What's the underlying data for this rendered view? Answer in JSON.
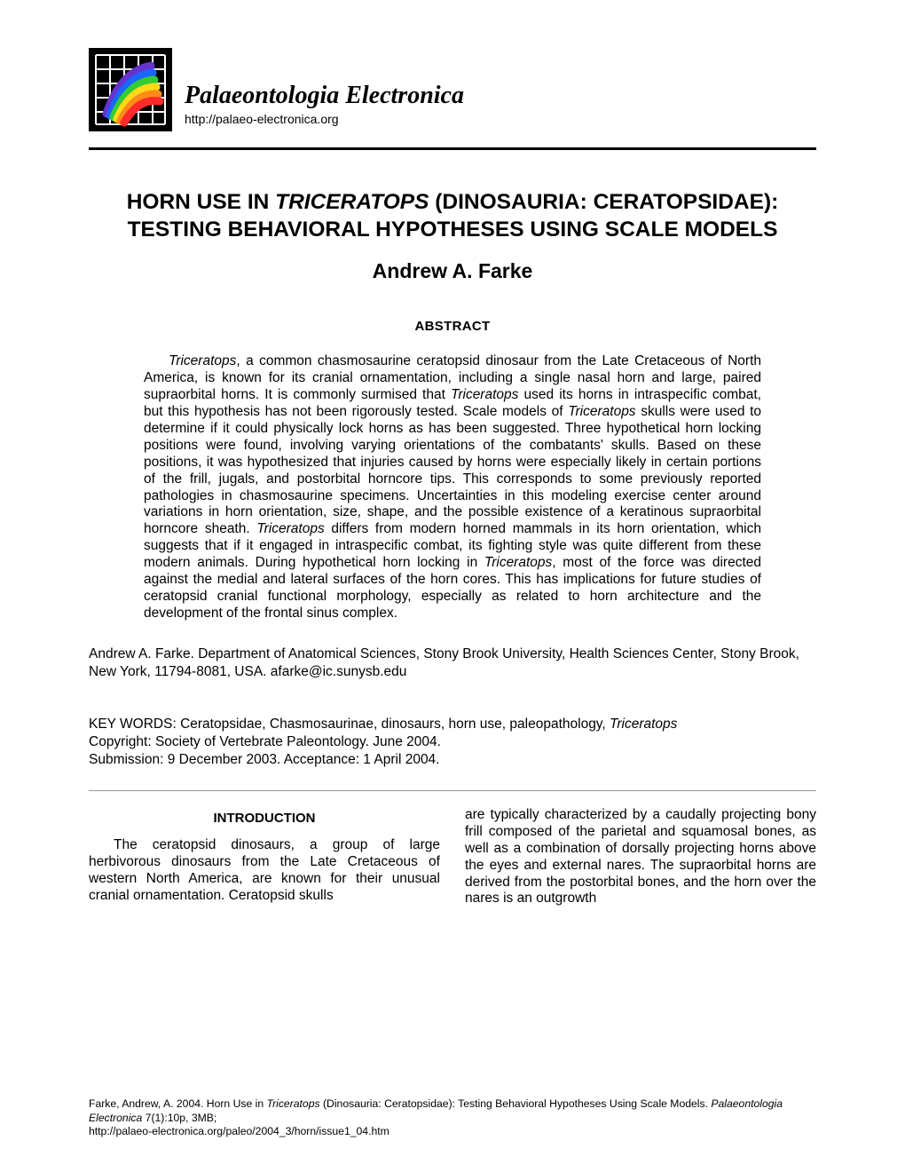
{
  "header": {
    "journal_name": "Palaeontologia Electronica",
    "journal_url": "http://palaeo-electronica.org",
    "logo": {
      "bg_color": "#000000",
      "grid_color": "#ffffff",
      "arc_colors": [
        "#ff2a2a",
        "#ff8c1a",
        "#ffd91a",
        "#33cc33",
        "#1a66ff",
        "#6633cc"
      ]
    }
  },
  "title": {
    "plain1": "HORN USE IN ",
    "italic": "TRICERATOPS",
    "plain2": " (DINOSAURIA: CERATOPSIDAE): TESTING BEHAVIORAL HYPOTHESES USING SCALE MODELS"
  },
  "author": "Andrew A. Farke",
  "abstract": {
    "heading": "ABSTRACT",
    "text_segments": [
      {
        "t": "Triceratops",
        "i": true
      },
      {
        "t": ", a common chasmosaurine ceratopsid dinosaur from the Late Cretaceous of North America, is known for its cranial ornamentation, including a single nasal horn and large, paired supraorbital horns. It is commonly surmised that "
      },
      {
        "t": "Triceratops",
        "i": true
      },
      {
        "t": " used its horns in intraspecific combat, but this hypothesis has not been rigorously tested. Scale models of "
      },
      {
        "t": "Triceratops",
        "i": true
      },
      {
        "t": " skulls were used to determine if it could physically lock horns as has been suggested. Three hypothetical horn locking positions were found, involving varying orientations of the combatants' skulls. Based on these positions, it was hypothesized that injuries caused by horns were especially likely in certain portions of the frill, jugals, and postorbital horncore tips. This corresponds to some previously reported pathologies in chasmosaurine specimens. Uncertainties in this modeling exercise center around variations in horn orientation, size, shape, and the possible existence of a keratinous supraorbital horncore sheath. "
      },
      {
        "t": "Triceratops",
        "i": true
      },
      {
        "t": " differs from modern horned mammals in its horn orientation, which suggests that if it engaged in intraspecific combat, its fighting style was quite different from these modern animals. During hypothetical horn locking in "
      },
      {
        "t": "Triceratops",
        "i": true
      },
      {
        "t": ", most of the force was directed against the medial and lateral surfaces of the horn cores. This has implications for future studies of ceratopsid cranial functional morphology, especially as related to horn architecture and the development of the frontal sinus complex."
      }
    ]
  },
  "affiliation": "Andrew A. Farke. Department of Anatomical Sciences, Stony Brook University, Health Sciences Center, Stony Brook, New York, 11794-8081, USA. afarke@ic.sunysb.edu",
  "meta": {
    "keywords": "KEY WORDS: Ceratopsidae, Chasmosaurinae, dinosaurs, horn use, paleopathology, ",
    "keywords_italic": "Triceratops",
    "copyright": "Copyright: Society of Vertebrate Paleontology. June 2004.",
    "submission": "Submission: 9 December 2003. Acceptance: 1 April 2004."
  },
  "body": {
    "section_heading": "INTRODUCTION",
    "col1": "The ceratopsid dinosaurs, a group of large herbivorous dinosaurs from the Late Cretaceous of western North America, are known for their unusual cranial ornamentation. Ceratopsid skulls",
    "col2": "are typically characterized by a caudally projecting bony frill composed of the parietal and squamosal bones, as well as a combination of dorsally projecting horns above the eyes and external nares. The supraorbital horns are derived from the postorbital bones, and the horn over the nares is an outgrowth"
  },
  "footer": {
    "citation_pre": "Farke, Andrew, A. 2004. Horn Use in ",
    "citation_it1": "Triceratops",
    "citation_mid": " (Dinosauria: Ceratopsidae): Testing Behavioral Hypotheses Using Scale Models. ",
    "citation_it2": "Palaeontologia Electronica",
    "citation_post": " 7(1):10p, 3MB;",
    "url": "http://palaeo-electronica.org/paleo/2004_3/horn/issue1_04.htm"
  }
}
